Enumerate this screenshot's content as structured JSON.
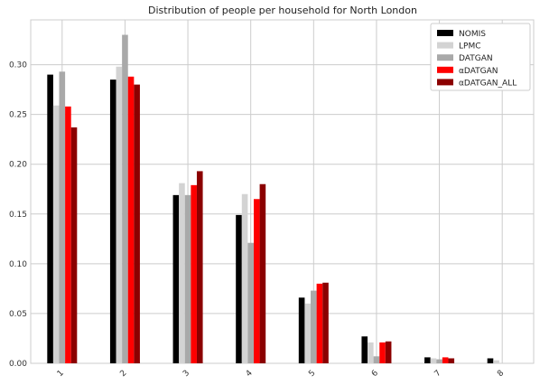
{
  "chart_data": {
    "type": "bar",
    "title": "Distribution of people per household for North London",
    "xlabel": "",
    "ylabel": "",
    "categories": [
      "1",
      "2",
      "3",
      "4",
      "5",
      "6",
      "7",
      "8"
    ],
    "ylim": [
      0,
      0.345
    ],
    "yticks": [
      "0.00",
      "0.05",
      "0.10",
      "0.15",
      "0.20",
      "0.25",
      "0.30"
    ],
    "grid": true,
    "legend_position": "top-right",
    "series": [
      {
        "name": "NOMIS",
        "color": "#000000",
        "values": [
          0.29,
          0.285,
          0.169,
          0.149,
          0.066,
          0.027,
          0.006,
          0.005
        ]
      },
      {
        "name": "LPMC",
        "color": "#d3d3d3",
        "values": [
          0.259,
          0.298,
          0.181,
          0.17,
          0.06,
          0.021,
          0.005,
          0.003
        ]
      },
      {
        "name": "DATGAN",
        "color": "#a9a9a9",
        "values": [
          0.293,
          0.33,
          0.169,
          0.121,
          0.073,
          0.007,
          0.004,
          0.0
        ]
      },
      {
        "name": "αDATGAN",
        "color": "#ff0000",
        "values": [
          0.258,
          0.288,
          0.179,
          0.165,
          0.08,
          0.021,
          0.006,
          0.0
        ]
      },
      {
        "name": "αDATGAN_ALL",
        "color": "#8b0000",
        "values": [
          0.237,
          0.28,
          0.193,
          0.18,
          0.081,
          0.022,
          0.005,
          0.0
        ]
      }
    ]
  }
}
